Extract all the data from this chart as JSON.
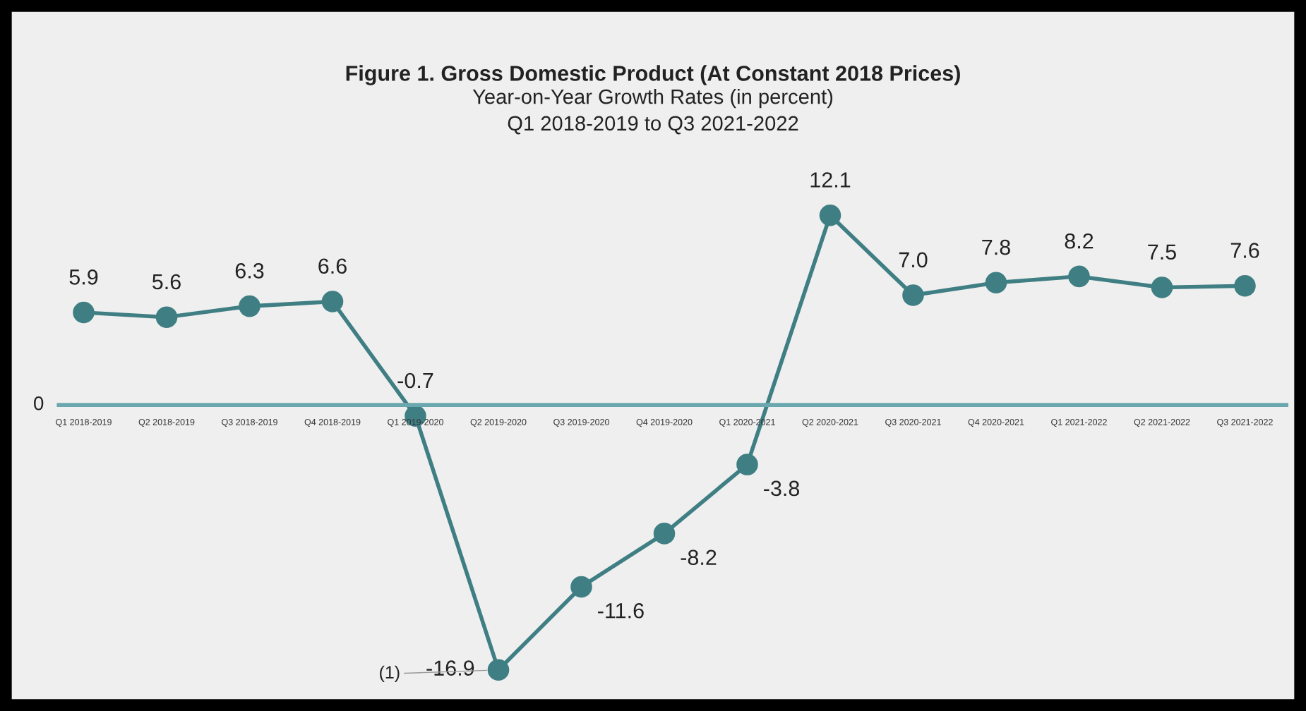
{
  "chart_data": {
    "type": "line",
    "title": "Figure 1. Gross Domestic Product (At Constant 2018 Prices)",
    "subtitle": "Year-on-Year Growth Rates (in percent)\nQ1 2018-2019 to Q3 2021-2022",
    "categories": [
      "Q1 2018-2019",
      "Q2 2018-2019",
      "Q3 2018-2019",
      "Q4 2018-2019",
      "Q1 2019-2020",
      "Q2 2019-2020",
      "Q3 2019-2020",
      "Q4 2019-2020",
      "Q1 2020-2021",
      "Q2 2020-2021",
      "Q3 2020-2021",
      "Q4 2020-2021",
      "Q1 2021-2022",
      "Q2 2021-2022",
      "Q3 2021-2022"
    ],
    "series": [
      {
        "color": "#3f7f84",
        "values": [
          5.9,
          5.6,
          6.3,
          6.6,
          -0.7,
          -16.9,
          -11.6,
          -8.2,
          -3.8,
          12.1,
          7.0,
          7.8,
          8.2,
          7.5,
          7.6
        ],
        "value_labels": [
          "5.9",
          "5.6",
          "6.3",
          "6.6",
          "-0.7",
          "-16.9",
          "-11.6",
          "-8.2",
          "-3.8",
          "12.1",
          "7.0",
          "7.8",
          "8.2",
          "7.5",
          "7.6"
        ]
      }
    ],
    "annotations": [
      {
        "text": "(1)",
        "x": "Q2 2019-2020",
        "y": -16.9
      },
      "0"
    ],
    "marker": "circle",
    "line_style": "solid",
    "grid": false,
    "legend": false
  }
}
